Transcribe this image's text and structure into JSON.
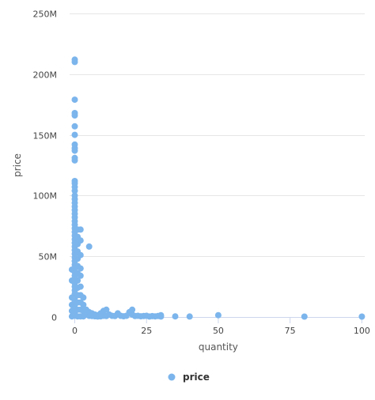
{
  "chart_data": {
    "type": "scatter",
    "title": "",
    "xlabel": "quantity",
    "ylabel": "price",
    "xlim": [
      -4,
      101
    ],
    "ylim": [
      0,
      250000000
    ],
    "x_ticks": [
      0,
      25,
      50,
      75,
      100
    ],
    "x_tick_labels": [
      "0",
      "25",
      "50",
      "75",
      "100"
    ],
    "y_ticks": [
      0,
      50000000,
      100000000,
      150000000,
      200000000,
      250000000
    ],
    "y_tick_labels": [
      "0",
      "50M",
      "100M",
      "150M",
      "200M",
      "250M"
    ],
    "grid": {
      "x": false,
      "y": true
    },
    "legend": {
      "position": "bottom-center",
      "entries": [
        "price"
      ]
    },
    "colors": {
      "series": "#7cb5ec",
      "grid": "#e6e6e6",
      "axis_line": "#ccd6eb"
    },
    "series": [
      {
        "name": "price",
        "points": [
          [
            0,
            212000000
          ],
          [
            0,
            210000000
          ],
          [
            0,
            179000000
          ],
          [
            0,
            168000000
          ],
          [
            0,
            166000000
          ],
          [
            0,
            157000000
          ],
          [
            0,
            150000000
          ],
          [
            0,
            142000000
          ],
          [
            0,
            139000000
          ],
          [
            0,
            137000000
          ],
          [
            0,
            131000000
          ],
          [
            0,
            129000000
          ],
          [
            0,
            112000000
          ],
          [
            0,
            110000000
          ],
          [
            0,
            107000000
          ],
          [
            0,
            104000000
          ],
          [
            0,
            100000000
          ],
          [
            0,
            97000000
          ],
          [
            0,
            94000000
          ],
          [
            0,
            91000000
          ],
          [
            0,
            88000000
          ],
          [
            0,
            85000000
          ],
          [
            0,
            82000000
          ],
          [
            0,
            79000000
          ],
          [
            0,
            76000000
          ],
          [
            0,
            73000000
          ],
          [
            0,
            70000000
          ],
          [
            0,
            67000000
          ],
          [
            0,
            64000000
          ],
          [
            0,
            61000000
          ],
          [
            0,
            58000000
          ],
          [
            0,
            55000000
          ],
          [
            0,
            52000000
          ],
          [
            0,
            49000000
          ],
          [
            0,
            46000000
          ],
          [
            0,
            43000000
          ],
          [
            0,
            40000000
          ],
          [
            0,
            37000000
          ],
          [
            0,
            34000000
          ],
          [
            0,
            31000000
          ],
          [
            0,
            28000000
          ],
          [
            0,
            25000000
          ],
          [
            0,
            22000000
          ],
          [
            0,
            19000000
          ],
          [
            0,
            16000000
          ],
          [
            0,
            13000000
          ],
          [
            0,
            10000000
          ],
          [
            0,
            7000000
          ],
          [
            0,
            4000000
          ],
          [
            0,
            1000000
          ],
          [
            1,
            72000000
          ],
          [
            1,
            66000000
          ],
          [
            1,
            60000000
          ],
          [
            1,
            54000000
          ],
          [
            1,
            48000000
          ],
          [
            1,
            42000000
          ],
          [
            1,
            36000000
          ],
          [
            1,
            30000000
          ],
          [
            1,
            24000000
          ],
          [
            1,
            18000000
          ],
          [
            1,
            12000000
          ],
          [
            1,
            6000000
          ],
          [
            1,
            500000
          ],
          [
            2,
            72000000
          ],
          [
            2,
            63000000
          ],
          [
            2,
            51000000
          ],
          [
            2,
            40000000
          ],
          [
            2,
            34000000
          ],
          [
            2,
            25000000
          ],
          [
            2,
            18000000
          ],
          [
            2,
            12000000
          ],
          [
            2,
            6000000
          ],
          [
            2,
            500000
          ],
          [
            3,
            16000000
          ],
          [
            3,
            10000000
          ],
          [
            3,
            5000000
          ],
          [
            3,
            500000
          ],
          [
            5,
            58000000
          ],
          [
            -1,
            39000000
          ],
          [
            -1,
            30000000
          ],
          [
            -1,
            16000000
          ],
          [
            -1,
            10000000
          ],
          [
            -1,
            5000000
          ],
          [
            -1,
            500000
          ],
          [
            4,
            6000000
          ],
          [
            4,
            2000000
          ],
          [
            5,
            4000000
          ],
          [
            5,
            1000000
          ],
          [
            6,
            3000000
          ],
          [
            6,
            800000
          ],
          [
            7,
            2000000
          ],
          [
            7,
            600000
          ],
          [
            8,
            1500000
          ],
          [
            8,
            400000
          ],
          [
            9,
            3000000
          ],
          [
            9,
            500000
          ],
          [
            10,
            5000000
          ],
          [
            10,
            1000000
          ],
          [
            11,
            6000000
          ],
          [
            11,
            800000
          ],
          [
            12,
            2000000
          ],
          [
            13,
            1000000
          ],
          [
            14,
            800000
          ],
          [
            15,
            3000000
          ],
          [
            16,
            1000000
          ],
          [
            17,
            600000
          ],
          [
            18,
            1000000
          ],
          [
            19,
            4000000
          ],
          [
            20,
            6000000
          ],
          [
            20,
            2000000
          ],
          [
            21,
            800000
          ],
          [
            22,
            1000000
          ],
          [
            23,
            600000
          ],
          [
            24,
            800000
          ],
          [
            25,
            1000000
          ],
          [
            26,
            400000
          ],
          [
            27,
            700000
          ],
          [
            28,
            500000
          ],
          [
            29,
            800000
          ],
          [
            30,
            1500000
          ],
          [
            30,
            400000
          ],
          [
            35,
            500000
          ],
          [
            40,
            400000
          ],
          [
            50,
            1500000
          ],
          [
            80,
            300000
          ],
          [
            100,
            300000
          ]
        ]
      }
    ]
  }
}
